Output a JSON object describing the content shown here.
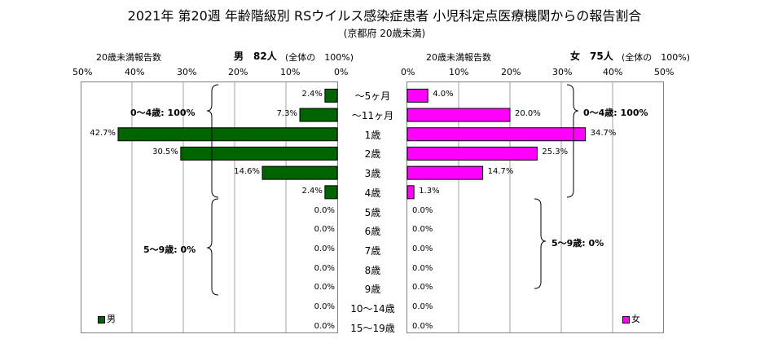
{
  "title": "2021年 第20週 年齢階級別 RSウイルス感染症患者 小児科定点医療機関からの報告割合",
  "subtitle": "(京都府 20歳未満)",
  "chart_data": {
    "type": "bar",
    "categories": [
      "～5ヶ月",
      "～11ヶ月",
      "1歳",
      "2歳",
      "3歳",
      "4歳",
      "5歳",
      "6歳",
      "7歳",
      "8歳",
      "9歳",
      "10～14歳",
      "15～19歳"
    ],
    "xlim": [
      0,
      50
    ],
    "xticks": [
      "50%",
      "40%",
      "30%",
      "20%",
      "10%",
      "0%"
    ],
    "xticks_right": [
      "0%",
      "10%",
      "20%",
      "30%",
      "40%",
      "50%"
    ],
    "series": [
      {
        "name": "男",
        "header_left": "20歳未満報告数",
        "header_count": "男　82人",
        "header_total": "(全体の　100%)",
        "values": [
          2.4,
          7.3,
          42.7,
          30.5,
          14.6,
          2.4,
          0.0,
          0.0,
          0.0,
          0.0,
          0.0,
          0.0,
          0.0
        ],
        "labels": [
          "2.4%",
          "7.3%",
          "42.7%",
          "30.5%",
          "14.6%",
          "2.4%",
          "0.0%",
          "0.0%",
          "0.0%",
          "0.0%",
          "0.0%",
          "0.0%",
          "0.0%"
        ],
        "color": "#006400"
      },
      {
        "name": "女",
        "header_left": "20歳未満報告数",
        "header_count": "女　75人",
        "header_total": "(全体の　100%)",
        "values": [
          4.0,
          20.0,
          34.7,
          25.3,
          14.7,
          1.3,
          0.0,
          0.0,
          0.0,
          0.0,
          0.0,
          0.0,
          0.0
        ],
        "labels": [
          "4.0%",
          "20.0%",
          "34.7%",
          "25.3%",
          "14.7%",
          "1.3%",
          "0.0%",
          "0.0%",
          "0.0%",
          "0.0%",
          "0.0%",
          "0.0%",
          "0.0%"
        ],
        "color": "#ff00ff"
      }
    ],
    "annotations": {
      "male_0_4": "0～4歳: 100%",
      "male_5_9": "5～9歳: 0%",
      "female_0_4": "0～4歳: 100%",
      "female_5_9": "5～9歳: 0%"
    },
    "legend": [
      "男",
      "女"
    ]
  }
}
